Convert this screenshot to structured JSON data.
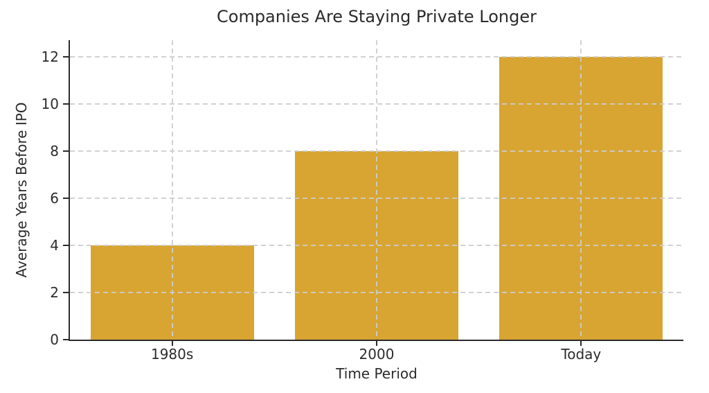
{
  "chart_data": {
    "type": "bar",
    "title": "Companies Are Staying Private Longer",
    "categories": [
      "1980s",
      "2000",
      "Today"
    ],
    "values": [
      4,
      8,
      12
    ],
    "xlabel": "Time Period",
    "ylabel": "Average Years Before IPO",
    "ylim": [
      0,
      12.7
    ],
    "yticks": [
      0,
      2,
      4,
      6,
      8,
      10,
      12
    ],
    "grid": "dashed, horizontal and vertical, drawn above bars",
    "legend": "none",
    "bar_color": "#d8a532",
    "grid_color": "#cdcdcd",
    "axis_color": "#2b2b2b",
    "text_color": "#2b2b2b",
    "background_color": "#ffffff"
  }
}
